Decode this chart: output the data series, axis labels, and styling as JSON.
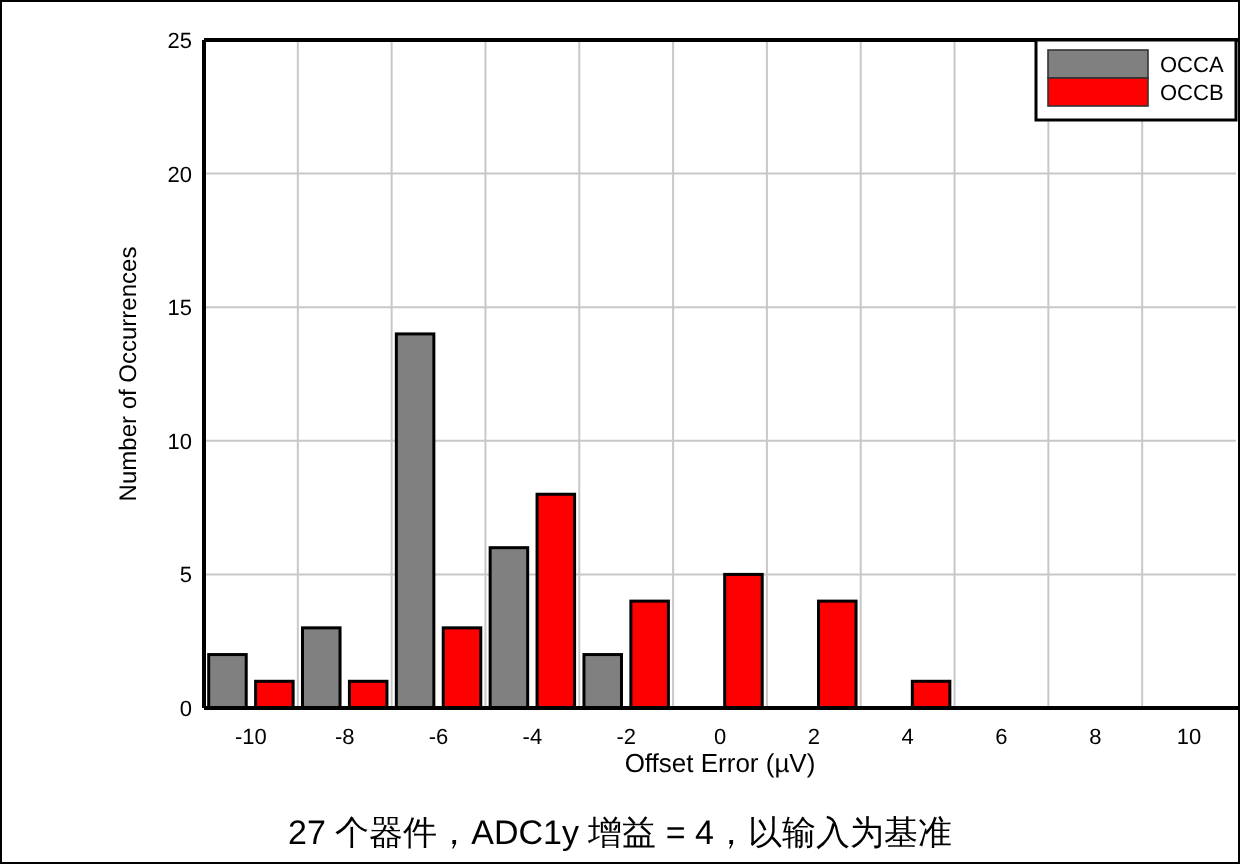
{
  "chart_data": {
    "type": "bar",
    "xlabel": "Offset Error (µV)",
    "ylabel": "Number of Occurrences",
    "categories": [
      "-10",
      "-8",
      "-6",
      "-4",
      "-2",
      "0",
      "2",
      "4",
      "6",
      "8",
      "10"
    ],
    "series": [
      {
        "name": "OCCA",
        "color": "#808080",
        "values": [
          2,
          3,
          14,
          6,
          2,
          0,
          0,
          0,
          0,
          0,
          0
        ]
      },
      {
        "name": "OCCB",
        "color": "#ff0000",
        "values": [
          1,
          1,
          3,
          8,
          4,
          5,
          4,
          1,
          0,
          0,
          0
        ]
      }
    ],
    "ylim": [
      0,
      25
    ],
    "yticks": [
      0,
      5,
      10,
      15,
      20,
      25
    ],
    "grid": true,
    "legend": "top right",
    "annotations": [
      "27 个器件，ADC1y 增益 = 4，以输入为基准"
    ]
  }
}
